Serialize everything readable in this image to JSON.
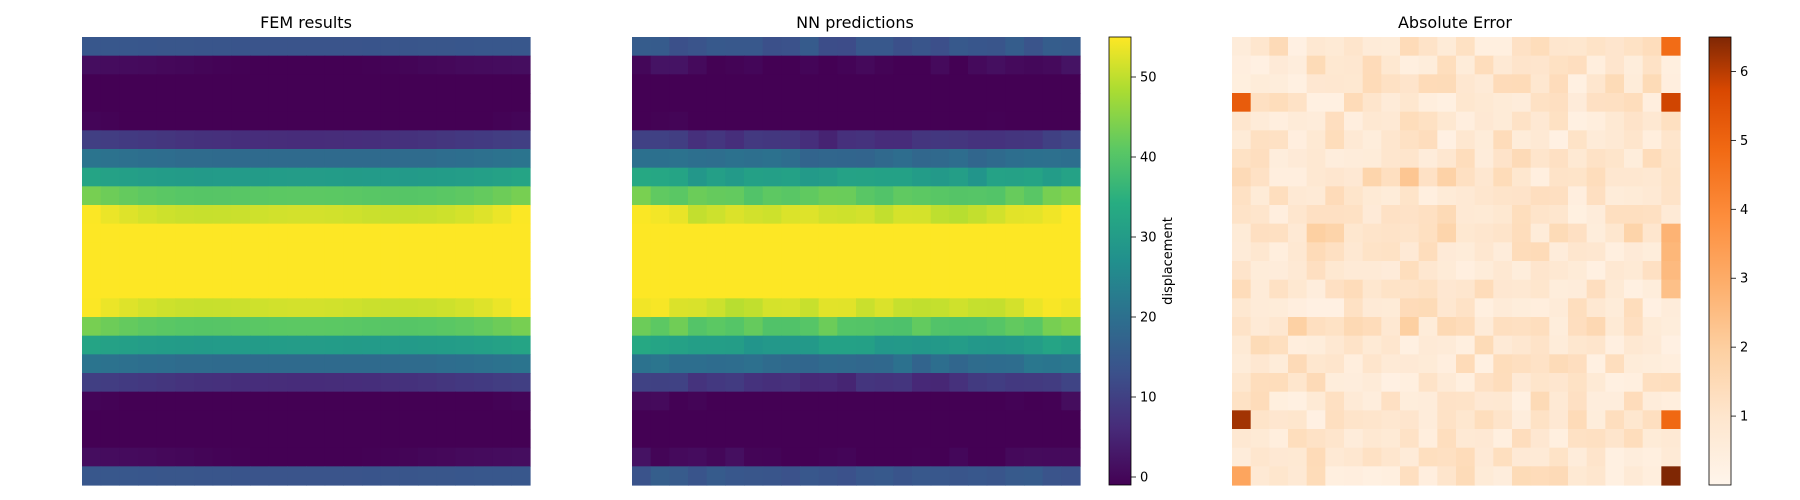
{
  "chart_data": [
    {
      "type": "heatmap",
      "title": "FEM results",
      "grid_rows": 24,
      "grid_cols": 24,
      "colormap": "viridis",
      "vmin": -1,
      "vmax": 55,
      "show_axes": false,
      "field": "fem"
    },
    {
      "type": "heatmap",
      "title": "NN predictions",
      "grid_rows": 24,
      "grid_cols": 24,
      "colormap": "viridis",
      "vmin": -1,
      "vmax": 55,
      "show_axes": false,
      "field": "nn",
      "colorbar": {
        "label": "displacement",
        "ticks": [
          0,
          10,
          20,
          30,
          40,
          50
        ],
        "range": [
          -1,
          55
        ]
      }
    },
    {
      "type": "heatmap",
      "title": "Absolute Error",
      "grid_rows": 24,
      "grid_cols": 24,
      "colormap": "oranges",
      "vmin": 0,
      "vmax": 6.5,
      "show_axes": false,
      "field": "error",
      "hot_spots": [
        {
          "row": 3,
          "col": 0,
          "value": 5.2
        },
        {
          "row": 3,
          "col": 23,
          "value": 5.8
        },
        {
          "row": 20,
          "col": 0,
          "value": 6.2
        },
        {
          "row": 20,
          "col": 23,
          "value": 4.9
        },
        {
          "row": 23,
          "col": 23,
          "value": 6.5
        },
        {
          "row": 0,
          "col": 23,
          "value": 4.8
        },
        {
          "row": 23,
          "col": 0,
          "value": 3.2
        }
      ],
      "colorbar": {
        "label": "",
        "ticks": [
          1,
          2,
          3,
          4,
          5,
          6
        ],
        "range": [
          0,
          6.5
        ]
      }
    }
  ]
}
